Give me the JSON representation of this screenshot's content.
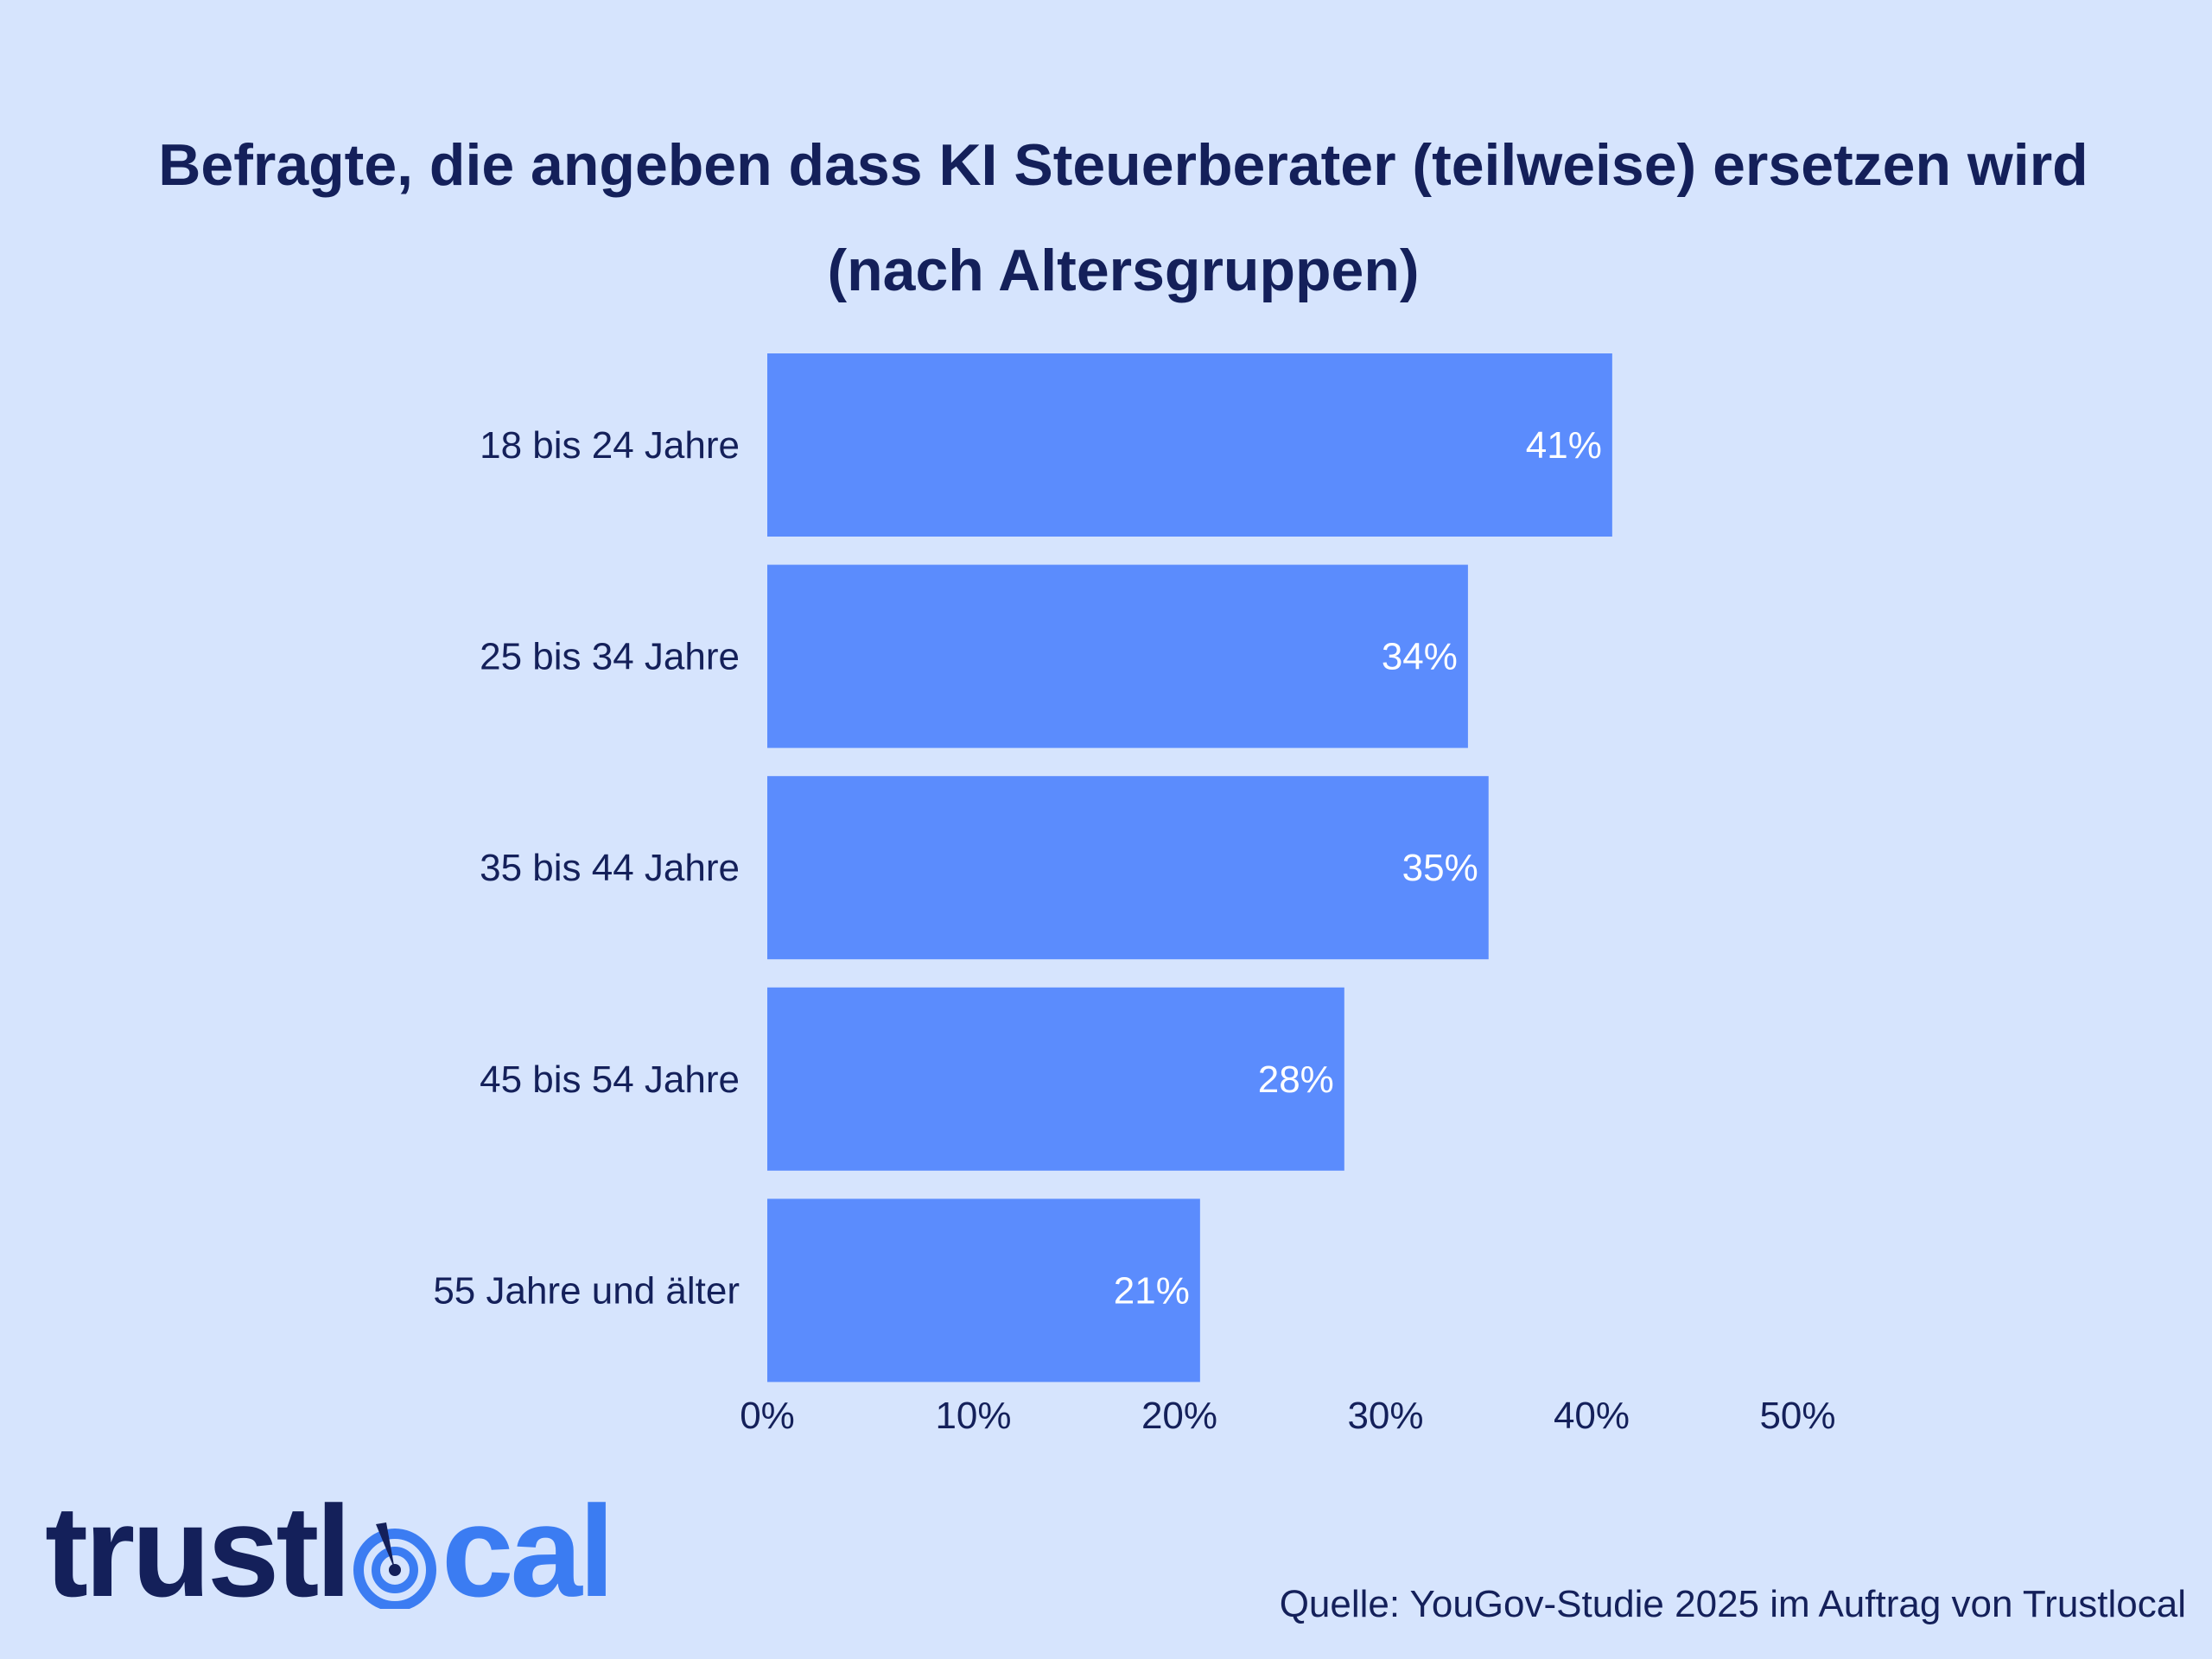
{
  "title_line1": "Befragte, die angeben dass KI Steuerberater (teilweise) ersetzen wird",
  "title_line2": "(nach Altersgruppen)",
  "chart_data": {
    "type": "bar",
    "orientation": "horizontal",
    "title": "Befragte, die angeben dass KI Steuerberater (teilweise) ersetzen wird (nach Altersgruppen)",
    "categories": [
      "18 bis 24 Jahre",
      "25 bis 34 Jahre",
      "35 bis 44 Jahre",
      "45 bis 54 Jahre",
      "55 Jahre und älter"
    ],
    "values": [
      41,
      34,
      35,
      28,
      21
    ],
    "value_labels": [
      "41%",
      "34%",
      "35%",
      "28%",
      "21%"
    ],
    "xlim": [
      0,
      50
    ],
    "xticks": [
      0,
      10,
      20,
      30,
      40,
      50
    ],
    "xtick_labels": [
      "0%",
      "10%",
      "20%",
      "30%",
      "40%",
      "50%"
    ],
    "grid": false,
    "bar_color": "#5b8cfd"
  },
  "logo": {
    "part1": "trustl",
    "part2": "cal"
  },
  "source": "Quelle: YouGov-Studie 2025 im Auftrag von Trustlocal",
  "colors": {
    "background": "#d6e4fd",
    "text": "#14205a",
    "bar": "#5b8cfd",
    "logo_blue": "#3b7cf2"
  }
}
